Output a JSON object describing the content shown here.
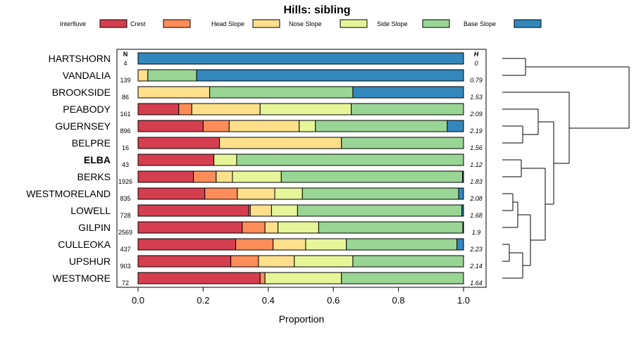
{
  "chart_data": {
    "type": "bar",
    "stacked": true,
    "orientation": "horizontal",
    "title": "Hills: sibling",
    "xlabel": "Proportion",
    "xlim": [
      0,
      1
    ],
    "xticks": [
      "0.0",
      "0.2",
      "0.4",
      "0.6",
      "0.8",
      "1.0"
    ],
    "xtick_values": [
      0,
      0.2,
      0.4,
      0.6,
      0.8,
      1.0
    ],
    "n_header": "N",
    "h_header": "H",
    "highlight": "ELBA",
    "legend_position": "top",
    "legend": [
      {
        "name": "Interfluve",
        "color": "#D53E4F"
      },
      {
        "name": "Crest",
        "color": "#FC8D59"
      },
      {
        "name": "Head Slope",
        "color": "#FEE08B"
      },
      {
        "name": "Nose Slope",
        "color": "#E6F598"
      },
      {
        "name": "Side Slope",
        "color": "#99D594"
      },
      {
        "name": "Base Slope",
        "color": "#3288BD"
      }
    ],
    "series_order": [
      "Interfluve",
      "Crest",
      "Head Slope",
      "Nose Slope",
      "Side Slope",
      "Base Slope"
    ],
    "rows": [
      {
        "name": "HARTSHORN",
        "n": "4",
        "h": "0",
        "values": [
          0,
          0,
          0,
          0,
          0,
          1.0
        ]
      },
      {
        "name": "VANDALIA",
        "n": "139",
        "h": "0.79",
        "values": [
          0,
          0,
          0.03,
          0,
          0.15,
          0.82
        ]
      },
      {
        "name": "BROOKSIDE",
        "n": "86",
        "h": "1.53",
        "values": [
          0,
          0,
          0.22,
          0,
          0.44,
          0.34
        ]
      },
      {
        "name": "PEABODY",
        "n": "161",
        "h": "2.09",
        "values": [
          0.125,
          0.04,
          0.21,
          0.28,
          0.345,
          0
        ]
      },
      {
        "name": "GUERNSEY",
        "n": "896",
        "h": "2.19",
        "values": [
          0.2,
          0.08,
          0.215,
          0.05,
          0.405,
          0.05
        ]
      },
      {
        "name": "BELPRE",
        "n": "16",
        "h": "1.56",
        "values": [
          0.25,
          0,
          0.375,
          0,
          0.375,
          0
        ]
      },
      {
        "name": "ELBA",
        "n": "43",
        "h": "1.12",
        "values": [
          0.233,
          0,
          0,
          0.07,
          0.697,
          0
        ]
      },
      {
        "name": "BERKS",
        "n": "1926",
        "h": "1.83",
        "values": [
          0.17,
          0.07,
          0.05,
          0.15,
          0.557,
          0.003
        ]
      },
      {
        "name": "WESTMORELAND",
        "n": "835",
        "h": "2.08",
        "values": [
          0.205,
          0.1,
          0.115,
          0.085,
          0.48,
          0.015
        ]
      },
      {
        "name": "LOWELL",
        "n": "728",
        "h": "1.68",
        "values": [
          0.34,
          0.005,
          0.065,
          0.08,
          0.505,
          0.005
        ]
      },
      {
        "name": "GILPIN",
        "n": "2569",
        "h": "1.9",
        "values": [
          0.32,
          0.07,
          0.04,
          0.125,
          0.443,
          0.002
        ]
      },
      {
        "name": "CULLEOKA",
        "n": "437",
        "h": "2.23",
        "values": [
          0.3,
          0.115,
          0.1,
          0.125,
          0.34,
          0.02
        ]
      },
      {
        "name": "UPSHUR",
        "n": "903",
        "h": "2.14",
        "values": [
          0.285,
          0.085,
          0.11,
          0.18,
          0.34,
          0
        ]
      },
      {
        "name": "WESTMORE",
        "n": "72",
        "h": "1.64",
        "values": [
          0.375,
          0.015,
          0,
          0.235,
          0.375,
          0
        ]
      }
    ]
  }
}
